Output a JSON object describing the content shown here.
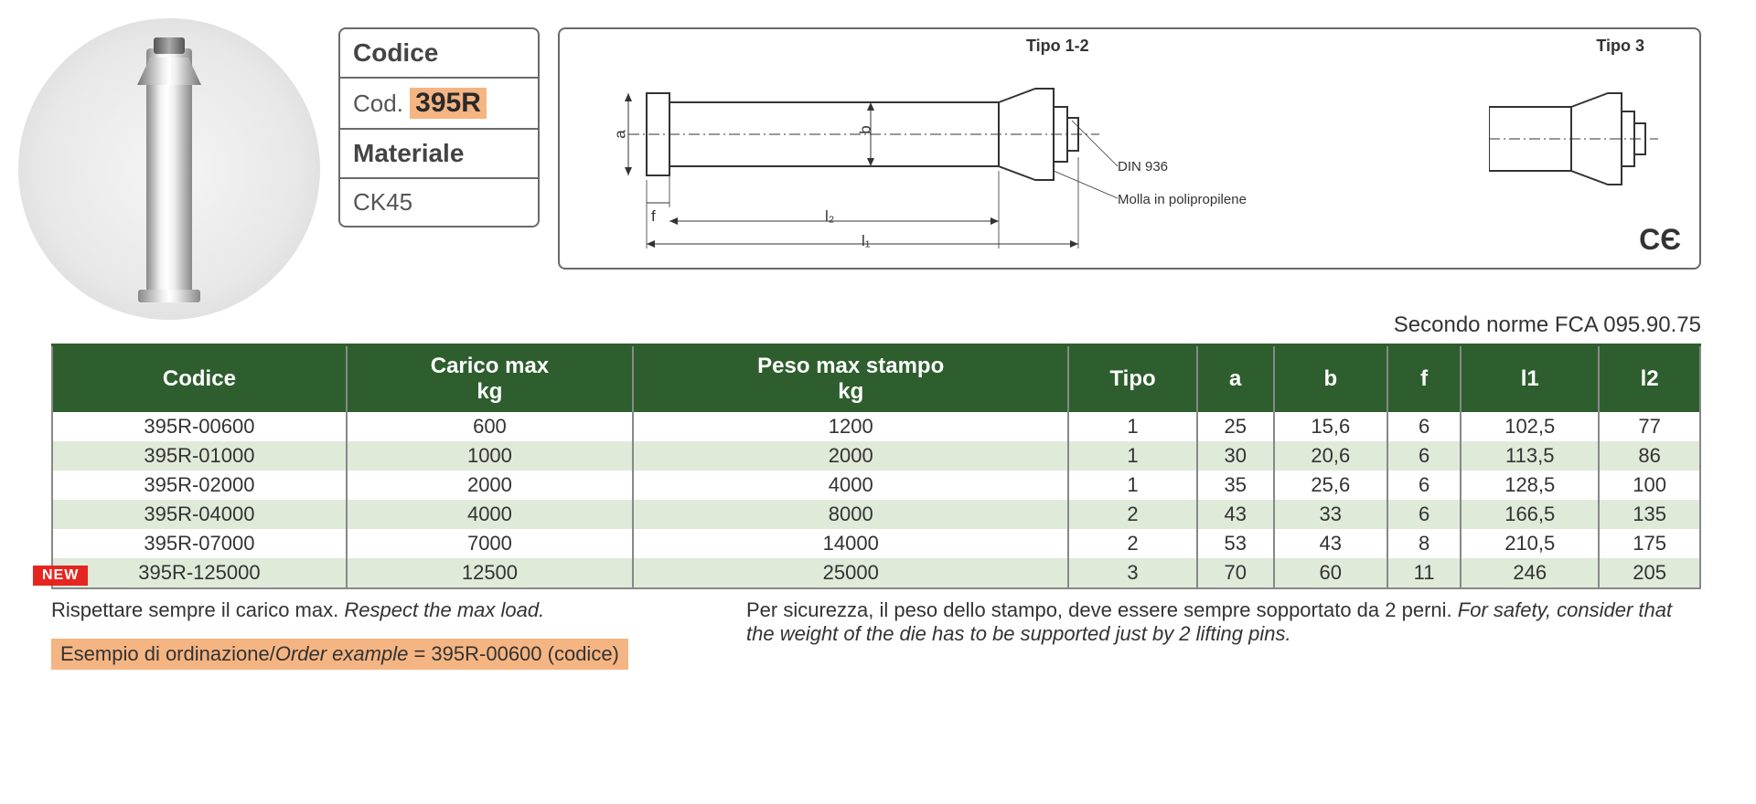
{
  "info_box": {
    "code_label": "Codice",
    "code_prefix": "Cod.",
    "code_value": "395R",
    "material_label": "Materiale",
    "material_value": "CK45"
  },
  "diagram": {
    "type12_label": "Tipo 1-2",
    "type3_label": "Tipo 3",
    "annotation_din": "DIN 936",
    "annotation_spring": "Molla in polipropilene",
    "dim_a": "a",
    "dim_b": "b",
    "dim_f": "f",
    "dim_l1": "l₁",
    "dim_l2": "l₂",
    "ce": "CЄ"
  },
  "norm_text": "Secondo norme FCA 095.90.75",
  "table": {
    "header_bg": "#2e5e2e",
    "row_alt_bg": "#e0ead9",
    "border_color": "#888888",
    "columns": [
      "Codice",
      "Carico max kg",
      "Peso max stampo kg",
      "Tipo",
      "a",
      "b",
      "f",
      "l1",
      "l2"
    ],
    "rows": [
      [
        "395R-00600",
        "600",
        "1200",
        "1",
        "25",
        "15,6",
        "6",
        "102,5",
        "77"
      ],
      [
        "395R-01000",
        "1000",
        "2000",
        "1",
        "30",
        "20,6",
        "6",
        "113,5",
        "86"
      ],
      [
        "395R-02000",
        "2000",
        "4000",
        "1",
        "35",
        "25,6",
        "6",
        "128,5",
        "100"
      ],
      [
        "395R-04000",
        "4000",
        "8000",
        "2",
        "43",
        "33",
        "6",
        "166,5",
        "135"
      ],
      [
        "395R-07000",
        "7000",
        "14000",
        "2",
        "53",
        "43",
        "8",
        "210,5",
        "175"
      ],
      [
        "395R-125000",
        "12500",
        "25000",
        "3",
        "70",
        "60",
        "11",
        "246",
        "205"
      ]
    ],
    "new_row_index": 5,
    "new_label": "NEW"
  },
  "footer": {
    "respect_it": "Rispettare sempre il carico max.",
    "respect_en": "Respect the max load.",
    "order_label_it": "Esempio di ordinazione",
    "order_label_en": "Order example",
    "order_value": "395R-00600 (codice)",
    "safety_it": "Per sicurezza, il peso dello stampo, deve essere sempre sopportato da 2 perni.",
    "safety_en": "For safety, consider that the weight of the die has to be supported just by 2 lifting pins."
  },
  "colors": {
    "orange_highlight": "#f5b583",
    "red_badge": "#e52520",
    "green_header": "#2e5e2e"
  }
}
